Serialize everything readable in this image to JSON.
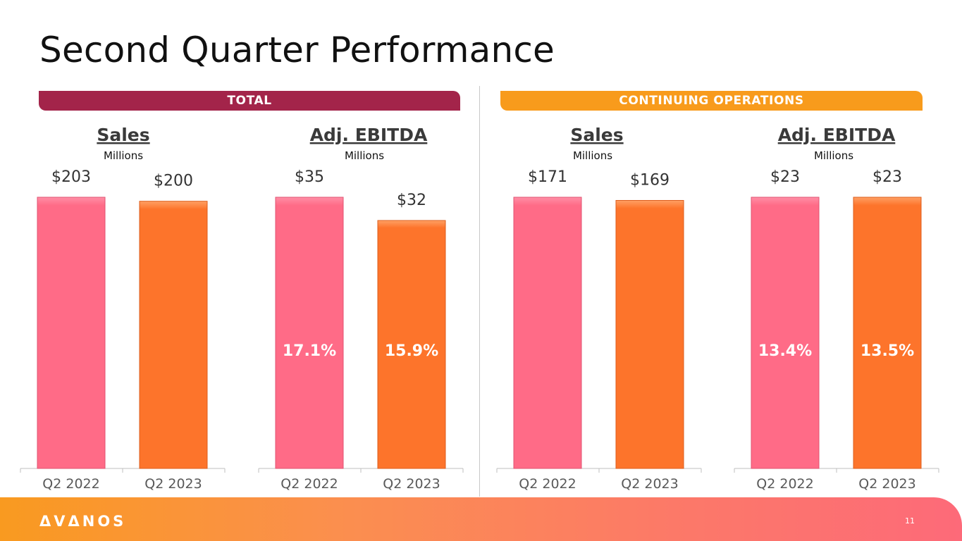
{
  "title": "Second Quarter Performance",
  "banners": {
    "total": "TOTAL",
    "continuing": "CONTINUING OPERATIONS"
  },
  "colors": {
    "q2_2022": "#ff6b87",
    "q2_2023": "#fd742b",
    "total_banner": "#a3244a",
    "continuing_banner": "#f89b1c"
  },
  "chart_data": [
    {
      "type": "bar",
      "group": "TOTAL",
      "title": "Sales",
      "subtitle": "Millions",
      "categories": [
        "Q2 2022",
        "Q2 2023"
      ],
      "values": [
        203,
        200
      ],
      "value_labels": [
        "$203",
        "$200"
      ],
      "margins": null,
      "ylim": [
        0,
        203
      ]
    },
    {
      "type": "bar",
      "group": "TOTAL",
      "title": "Adj. EBITDA",
      "subtitle": "Millions",
      "categories": [
        "Q2 2022",
        "Q2 2023"
      ],
      "values": [
        35,
        32
      ],
      "value_labels": [
        "$35",
        "$32"
      ],
      "margins": [
        "17.1%",
        "15.9%"
      ],
      "ylim": [
        0,
        35
      ]
    },
    {
      "type": "bar",
      "group": "CONTINUING OPERATIONS",
      "title": "Sales",
      "subtitle": "Millions",
      "categories": [
        "Q2 2022",
        "Q2 2023"
      ],
      "values": [
        171,
        169
      ],
      "value_labels": [
        "$171",
        "$169"
      ],
      "margins": null,
      "ylim": [
        0,
        171
      ]
    },
    {
      "type": "bar",
      "group": "CONTINUING OPERATIONS",
      "title": "Adj. EBITDA",
      "subtitle": "Millions",
      "categories": [
        "Q2 2022",
        "Q2 2023"
      ],
      "values": [
        23,
        23
      ],
      "value_labels": [
        "$23",
        "$23"
      ],
      "margins": [
        "13.4%",
        "13.5%"
      ],
      "ylim": [
        0,
        23
      ]
    }
  ],
  "footer": {
    "logo": "ΔVΔNOS",
    "page_number": "11"
  }
}
